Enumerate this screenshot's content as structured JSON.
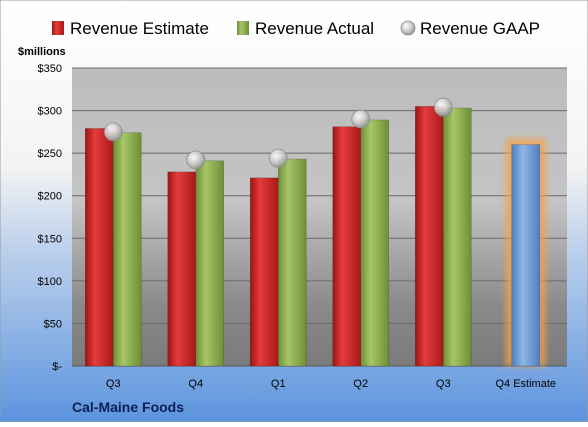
{
  "chart_data": {
    "type": "bar",
    "title": "",
    "ylabel": "$millions",
    "xlabel": "",
    "company": "Cal-Maine Foods",
    "ylim": [
      0,
      350
    ],
    "y_ticks": [
      0,
      50,
      100,
      150,
      200,
      250,
      300,
      350
    ],
    "y_tick_labels": [
      "$-",
      "$50",
      "$100",
      "$150",
      "$200",
      "$250",
      "$300",
      "$350"
    ],
    "categories": [
      "Q3",
      "Q4",
      "Q1",
      "Q2",
      "Q3",
      "Q4 Estimate"
    ],
    "grid": true,
    "legend_position": "top",
    "series": [
      {
        "name": "Revenue Estimate",
        "kind": "bar",
        "color": "#d42a2a",
        "values": [
          279,
          228,
          221,
          281,
          305,
          null
        ]
      },
      {
        "name": "Revenue Actual",
        "kind": "bar",
        "color": "#8db04e",
        "values": [
          274,
          241,
          243,
          289,
          303,
          null
        ]
      },
      {
        "name": "Revenue GAAP",
        "kind": "marker",
        "color": "#c0c0c0",
        "values": [
          275,
          242,
          244,
          290,
          304,
          null
        ]
      },
      {
        "name": "",
        "kind": "bar",
        "color": "#6f9fd8",
        "highlight": "#f4a24a",
        "values": [
          null,
          null,
          null,
          null,
          null,
          260
        ]
      }
    ]
  }
}
